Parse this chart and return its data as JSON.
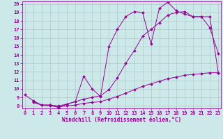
{
  "line1_x": [
    0,
    1,
    2,
    3,
    4,
    5,
    6,
    7,
    8,
    9,
    10,
    11,
    12,
    13,
    14,
    15,
    16,
    17,
    18,
    19,
    20,
    21,
    22,
    23
  ],
  "line1_y": [
    9.3,
    8.6,
    8.1,
    8.1,
    7.8,
    8.2,
    8.5,
    11.5,
    10.0,
    9.1,
    15.0,
    17.0,
    18.5,
    19.1,
    19.0,
    15.3,
    19.5,
    20.2,
    19.2,
    18.8,
    18.5,
    18.5,
    17.2,
    14.2
  ],
  "line2_x": [
    1,
    2,
    3,
    4,
    5,
    6,
    7,
    8,
    9,
    10,
    11,
    12,
    13,
    14,
    15,
    16,
    17,
    18,
    19,
    20,
    21,
    22,
    23
  ],
  "line2_y": [
    8.5,
    8.1,
    8.1,
    8.0,
    8.2,
    8.5,
    8.8,
    9.0,
    9.2,
    9.9,
    11.3,
    13.0,
    14.5,
    16.2,
    17.0,
    17.8,
    18.7,
    19.0,
    19.1,
    18.5,
    18.5,
    18.5,
    11.9
  ],
  "line3_x": [
    1,
    2,
    3,
    4,
    5,
    6,
    7,
    8,
    9,
    10,
    11,
    12,
    13,
    14,
    15,
    16,
    17,
    18,
    19,
    20,
    21,
    22,
    23
  ],
  "line3_y": [
    8.4,
    8.1,
    8.0,
    7.9,
    8.0,
    8.1,
    8.3,
    8.4,
    8.5,
    8.8,
    9.1,
    9.5,
    9.9,
    10.3,
    10.6,
    10.9,
    11.2,
    11.4,
    11.6,
    11.7,
    11.8,
    11.9,
    11.9
  ],
  "color": "#990099",
  "bg_color": "#cce8e8",
  "grid_color": "#b0c8c8",
  "xlabel": "Windchill (Refroidissement éolien,°C)",
  "xlim": [
    0,
    23
  ],
  "ylim": [
    8,
    20
  ],
  "yticks": [
    8,
    9,
    10,
    11,
    12,
    13,
    14,
    15,
    16,
    17,
    18,
    19,
    20
  ],
  "xticks": [
    0,
    1,
    2,
    3,
    4,
    5,
    6,
    7,
    8,
    9,
    10,
    11,
    12,
    13,
    14,
    15,
    16,
    17,
    18,
    19,
    20,
    21,
    22,
    23
  ],
  "marker": "D",
  "marker_size": 2.0,
  "linewidth": 0.7
}
